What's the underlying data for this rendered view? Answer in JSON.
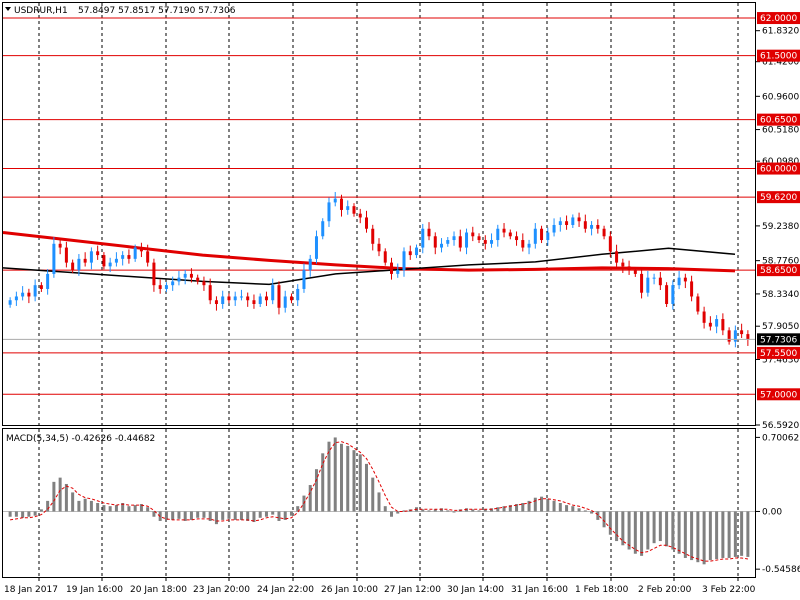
{
  "header": {
    "symbol": "USDRUR,H1",
    "ohlc": "57.8497 57.8517 57.7190 57.7306"
  },
  "macd_header": "MACD(5,34,5) -0.42626 -0.44682",
  "colors": {
    "bull": "#1E90FF",
    "bear": "#E00000",
    "level": "#E00000",
    "ma_red": "#E00000",
    "ma_black": "#000000",
    "histogram": "#808080",
    "signal": "#E00000",
    "grid": "#000000"
  },
  "chart_data": [
    {
      "type": "candlestick",
      "symbol": "USDRUR",
      "timeframe": "H1",
      "ylim": [
        56.592,
        62.2
      ],
      "y_ticks": [
        "61.8320",
        "61.4200",
        "60.9600",
        "60.5180",
        "60.0980",
        "59.2380",
        "58.7760",
        "58.3340",
        "57.9050",
        "57.4630",
        "56.5920"
      ],
      "levels": [
        {
          "value": 62.0,
          "label": "62.0000"
        },
        {
          "value": 61.5,
          "label": "61.5000"
        },
        {
          "value": 60.65,
          "label": "60.6500"
        },
        {
          "value": 60.0,
          "label": "60.0000"
        },
        {
          "value": 59.62,
          "label": "59.6200"
        },
        {
          "value": 58.65,
          "label": "58.6500"
        },
        {
          "value": 57.55,
          "label": "57.5500"
        },
        {
          "value": 57.0,
          "label": "57.0000"
        }
      ],
      "current_price": {
        "value": 57.7306,
        "label": "57.7306"
      },
      "x_labels": [
        "18 Jan 2017",
        "19 Jan 16:00",
        "20 Jan 18:00",
        "23 Jan 20:00",
        "24 Jan 22:00",
        "26 Jan 10:00",
        "27 Jan 12:00",
        "30 Jan 14:00",
        "31 Jan 16:00",
        "1 Feb 18:00",
        "2 Feb 20:00",
        "3 Feb 22:00"
      ],
      "close": [
        58.25,
        58.3,
        58.35,
        58.3,
        58.45,
        58.4,
        58.6,
        59.0,
        58.95,
        58.75,
        58.65,
        58.8,
        58.75,
        58.9,
        58.85,
        58.7,
        58.75,
        58.8,
        58.85,
        58.8,
        58.95,
        58.9,
        58.75,
        58.45,
        58.4,
        58.45,
        58.5,
        58.55,
        58.6,
        58.55,
        58.5,
        58.45,
        58.25,
        58.2,
        58.3,
        58.25,
        58.3,
        58.3,
        58.25,
        58.2,
        58.3,
        58.25,
        58.45,
        58.15,
        58.3,
        58.25,
        58.4,
        58.65,
        58.8,
        59.1,
        59.3,
        59.55,
        59.6,
        59.45,
        59.5,
        59.4,
        59.35,
        59.2,
        59.0,
        58.9,
        58.75,
        58.6,
        58.65,
        58.9,
        58.85,
        58.95,
        59.2,
        59.1,
        58.95,
        59.0,
        59.05,
        59.1,
        58.95,
        59.15,
        59.1,
        59.05,
        59.0,
        59.05,
        59.2,
        59.15,
        59.1,
        59.05,
        58.95,
        59.0,
        59.2,
        59.05,
        59.15,
        59.25,
        59.3,
        59.25,
        59.35,
        59.3,
        59.2,
        59.25,
        59.2,
        59.1,
        58.9,
        58.75,
        58.7,
        58.65,
        58.6,
        58.35,
        58.55,
        58.55,
        58.45,
        58.2,
        58.45,
        58.55,
        58.5,
        58.3,
        58.1,
        57.95,
        57.9,
        58.0,
        57.85,
        57.7,
        57.85,
        57.8,
        57.7306
      ],
      "open_offset": -0.06,
      "ma_red": [
        59.15,
        59.05,
        58.95,
        58.85,
        58.78,
        58.72,
        58.67,
        58.65,
        58.66,
        58.68,
        58.67,
        58.64
      ],
      "ma_black": [
        58.68,
        58.62,
        58.56,
        58.5,
        58.46,
        58.6,
        58.66,
        58.72,
        58.76,
        58.86,
        58.94,
        58.86
      ]
    },
    {
      "type": "bar",
      "name": "MACD(5,34,5)",
      "ylim": [
        -0.62,
        0.78
      ],
      "y_ticks": [
        "0.70062",
        "0.00",
        "-0.54586"
      ],
      "macd_values": [
        -0.05,
        -0.05,
        -0.06,
        -0.05,
        -0.04,
        0.02,
        0.1,
        0.28,
        0.32,
        0.26,
        0.18,
        0.1,
        0.12,
        0.1,
        0.08,
        0.06,
        0.05,
        0.06,
        0.08,
        0.05,
        0.06,
        0.07,
        0.04,
        -0.05,
        -0.09,
        -0.08,
        -0.08,
        -0.07,
        -0.09,
        -0.08,
        -0.06,
        -0.06,
        -0.09,
        -0.12,
        -0.08,
        -0.07,
        -0.08,
        -0.08,
        -0.09,
        -0.1,
        -0.06,
        -0.05,
        -0.03,
        -0.09,
        -0.08,
        -0.04,
        0.05,
        0.15,
        0.25,
        0.4,
        0.55,
        0.66,
        0.7,
        0.64,
        0.62,
        0.58,
        0.54,
        0.45,
        0.32,
        0.18,
        0.05,
        -0.05,
        -0.02,
        0.01,
        0.02,
        0.04,
        0.02,
        0.01,
        0.02,
        0.03,
        0.01,
        -0.01,
        0.02,
        0.03,
        0.02,
        0.01,
        0.02,
        0.03,
        0.04,
        0.05,
        0.06,
        0.07,
        0.08,
        0.1,
        0.13,
        0.14,
        0.12,
        0.1,
        0.08,
        0.06,
        0.05,
        0.03,
        0.01,
        -0.02,
        -0.08,
        -0.15,
        -0.22,
        -0.28,
        -0.32,
        -0.36,
        -0.4,
        -0.42,
        -0.36,
        -0.3,
        -0.28,
        -0.33,
        -0.36,
        -0.4,
        -0.44,
        -0.46,
        -0.48,
        -0.5,
        -0.46,
        -0.45,
        -0.44,
        -0.44,
        -0.43,
        -0.42,
        -0.43
      ],
      "signal_values": [
        -0.08,
        -0.07,
        -0.06,
        -0.06,
        -0.05,
        -0.03,
        0.02,
        0.1,
        0.2,
        0.24,
        0.22,
        0.16,
        0.13,
        0.12,
        0.1,
        0.08,
        0.07,
        0.06,
        0.07,
        0.06,
        0.06,
        0.06,
        0.05,
        0.01,
        -0.05,
        -0.07,
        -0.08,
        -0.08,
        -0.08,
        -0.08,
        -0.07,
        -0.07,
        -0.07,
        -0.09,
        -0.09,
        -0.08,
        -0.08,
        -0.08,
        -0.08,
        -0.09,
        -0.08,
        -0.06,
        -0.05,
        -0.06,
        -0.07,
        -0.06,
        -0.01,
        0.08,
        0.18,
        0.3,
        0.45,
        0.57,
        0.65,
        0.66,
        0.64,
        0.6,
        0.56,
        0.5,
        0.4,
        0.28,
        0.15,
        0.04,
        0.0,
        0.0,
        0.01,
        0.02,
        0.02,
        0.02,
        0.02,
        0.02,
        0.02,
        0.01,
        0.01,
        0.02,
        0.02,
        0.02,
        0.02,
        0.02,
        0.03,
        0.04,
        0.05,
        0.06,
        0.07,
        0.08,
        0.1,
        0.12,
        0.12,
        0.11,
        0.1,
        0.08,
        0.06,
        0.05,
        0.03,
        0.01,
        -0.03,
        -0.09,
        -0.16,
        -0.22,
        -0.28,
        -0.32,
        -0.36,
        -0.39,
        -0.38,
        -0.35,
        -0.32,
        -0.32,
        -0.34,
        -0.37,
        -0.4,
        -0.43,
        -0.45,
        -0.47,
        -0.47,
        -0.46,
        -0.45,
        -0.45,
        -0.44,
        -0.44,
        -0.45
      ]
    }
  ]
}
